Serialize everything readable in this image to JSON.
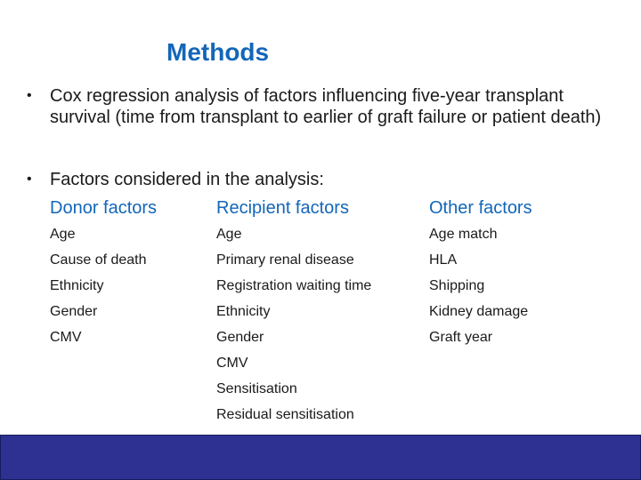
{
  "title": "Methods",
  "bullets": [
    {
      "symbol": "•",
      "text": "Cox regression analysis of factors influencing five-year transplant survival (time from transplant to earlier of graft failure or patient death)"
    },
    {
      "symbol": "•",
      "text": "Factors considered in the analysis:"
    }
  ],
  "columns": {
    "donor": {
      "header": "Donor factors",
      "items": [
        "Age",
        "Cause of death",
        "Ethnicity",
        "Gender",
        "CMV"
      ]
    },
    "recipient": {
      "header": "Recipient factors",
      "items": [
        "Age",
        "Primary renal disease",
        "Registration waiting time",
        "Ethnicity",
        "Gender",
        "CMV",
        "Sensitisation",
        "Residual sensitisation"
      ]
    },
    "other": {
      "header": "Other factors",
      "items": [
        "Age match",
        "HLA",
        "Shipping",
        "Kidney damage",
        "Graft year"
      ]
    }
  },
  "colors": {
    "title": "#1366b8",
    "column_header": "#1366b8",
    "footer_bar": "#2e3192"
  }
}
